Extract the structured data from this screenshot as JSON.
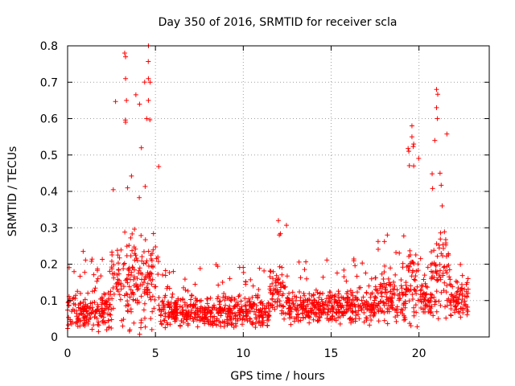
{
  "chart_data": {
    "type": "scatter",
    "title": "Day 350 of 2016, SRMTID for receiver scla",
    "xlabel": "GPS time / hours",
    "ylabel": "SRMTID / TECUs",
    "xlim": [
      0,
      24
    ],
    "ylim": [
      0,
      0.8
    ],
    "xticks": [
      0,
      5,
      10,
      15,
      20
    ],
    "yticks": [
      0,
      0.1,
      0.2,
      0.3,
      0.4,
      0.5,
      0.6,
      0.7,
      0.8
    ],
    "xtick_labels": [
      "0",
      "5",
      "10",
      "15",
      "20"
    ],
    "ytick_labels": [
      "0",
      "0.1",
      "0.2",
      "0.3",
      "0.4",
      "0.5",
      "0.6",
      "0.7",
      "0.8"
    ],
    "grid": true,
    "marker": "+",
    "marker_color": "#ff0000",
    "profile": {
      "description": "approximate envelope of the scattered points, in data units",
      "segments": [
        {
          "x_start": 0.0,
          "x_end": 2.5,
          "baseline": 0.07,
          "spread": 0.06,
          "peak": 0.24
        },
        {
          "x_start": 2.5,
          "x_end": 5.2,
          "baseline": 0.15,
          "spread": 0.15,
          "peak": 0.8
        },
        {
          "x_start": 5.2,
          "x_end": 11.5,
          "baseline": 0.07,
          "spread": 0.05,
          "peak": 0.2
        },
        {
          "x_start": 11.5,
          "x_end": 12.5,
          "baseline": 0.12,
          "spread": 0.1,
          "peak": 0.32
        },
        {
          "x_start": 12.5,
          "x_end": 17.5,
          "baseline": 0.08,
          "spread": 0.05,
          "peak": 0.22
        },
        {
          "x_start": 17.5,
          "x_end": 19.3,
          "baseline": 0.1,
          "spread": 0.07,
          "peak": 0.28
        },
        {
          "x_start": 19.3,
          "x_end": 20.0,
          "baseline": 0.15,
          "spread": 0.15,
          "peak": 0.58
        },
        {
          "x_start": 20.0,
          "x_end": 20.7,
          "baseline": 0.1,
          "spread": 0.06,
          "peak": 0.25
        },
        {
          "x_start": 20.7,
          "x_end": 21.8,
          "baseline": 0.18,
          "spread": 0.15,
          "peak": 0.68
        },
        {
          "x_start": 21.8,
          "x_end": 22.8,
          "baseline": 0.1,
          "spread": 0.06,
          "peak": 0.2
        }
      ],
      "spikes": [
        {
          "x": 3.25,
          "y": 0.78
        },
        {
          "x": 3.3,
          "y": 0.77
        },
        {
          "x": 3.3,
          "y": 0.71
        },
        {
          "x": 3.35,
          "y": 0.65
        },
        {
          "x": 3.3,
          "y": 0.59
        },
        {
          "x": 4.6,
          "y": 0.8
        },
        {
          "x": 4.6,
          "y": 0.71
        },
        {
          "x": 4.7,
          "y": 0.7
        },
        {
          "x": 4.6,
          "y": 0.65
        },
        {
          "x": 4.5,
          "y": 0.6
        },
        {
          "x": 4.2,
          "y": 0.52
        },
        {
          "x": 19.6,
          "y": 0.58
        },
        {
          "x": 19.6,
          "y": 0.55
        },
        {
          "x": 19.7,
          "y": 0.53
        },
        {
          "x": 19.7,
          "y": 0.47
        },
        {
          "x": 21.0,
          "y": 0.68
        },
        {
          "x": 21.0,
          "y": 0.63
        },
        {
          "x": 21.05,
          "y": 0.6
        },
        {
          "x": 20.9,
          "y": 0.54
        },
        {
          "x": 21.2,
          "y": 0.45
        },
        {
          "x": 12.0,
          "y": 0.32
        },
        {
          "x": 12.05,
          "y": 0.28
        },
        {
          "x": 18.2,
          "y": 0.28
        }
      ]
    }
  }
}
